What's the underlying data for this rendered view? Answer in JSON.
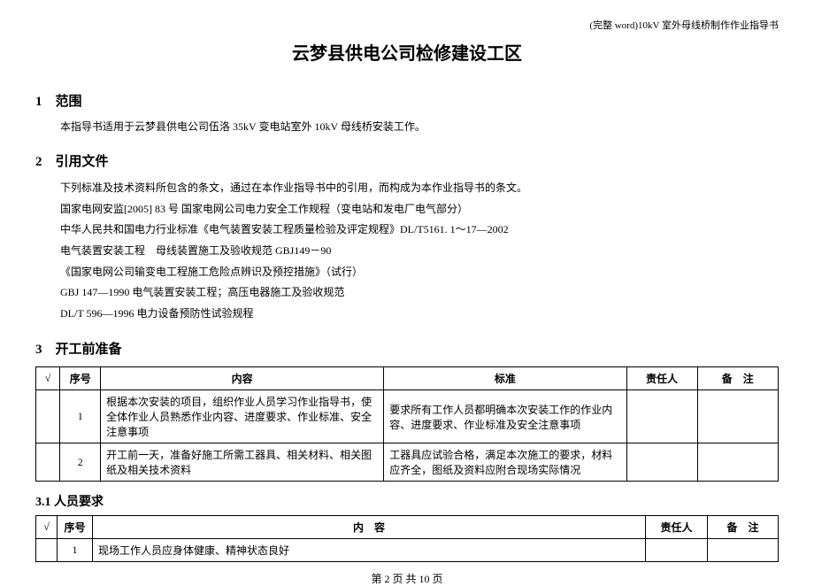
{
  "header": {
    "right_text": "(完整 word)10kV 室外母线桥制作作业指导书"
  },
  "title": "云梦县供电公司检修建设工区",
  "sections": {
    "s1": {
      "heading": "1　范围",
      "body": "本指导书适用于云梦县供电公司伍洛 35kV 变电站室外 10kV 母线桥安装工作。"
    },
    "s2": {
      "heading": "2　引用文件",
      "intro": "下列标准及技术资料所包含的条文，通过在本作业指导书中的引用，而构成为本作业指导书的条文。",
      "refs": [
        "国家电网安监[2005] 83 号 国家电网公司电力安全工作规程（变电站和发电厂电气部分）",
        "中华人民共和国电力行业标准《电气装置安装工程质量检验及评定规程》DL/T5161. 1～17—2002",
        "电气装置安装工程　母线装置施工及验收规范 GBJ149－90",
        "《国家电网公司输变电工程施工危险点辨识及预控措施》（试行）",
        "GBJ 147—1990 电气装置安装工程；高压电器施工及验收规范",
        "DL/T 596—1996 电力设备预防性试验规程"
      ]
    },
    "s3": {
      "heading": "3　开工前准备"
    },
    "s31": {
      "heading": "3.1 人员要求"
    }
  },
  "table1": {
    "headers": {
      "check": "√",
      "seq": "序号",
      "content": "内容",
      "standard": "标准",
      "person": "责任人",
      "note": "备　注"
    },
    "rows": [
      {
        "seq": "1",
        "content": "根据本次安装的项目，组织作业人员学习作业指导书，使全体作业人员熟悉作业内容、进度要求、作业标准、安全注意事项",
        "standard": "要求所有工作人员都明确本次安装工作的作业内容、进度要求、作业标准及安全注意事项",
        "person": "",
        "note": ""
      },
      {
        "seq": "2",
        "content": "开工前一天，准备好施工所需工器具、相关材料、相关图纸及相关技术资料",
        "standard": "工器具应试验合格，满足本次施工的要求，材料应齐全，图纸及资料应附合现场实际情况",
        "person": "",
        "note": ""
      }
    ]
  },
  "table2": {
    "headers": {
      "check": "√",
      "seq": "序号",
      "content": "内　容",
      "person": "责任人",
      "note": "备　注"
    },
    "rows": [
      {
        "seq": "1",
        "content": "现场工作人员应身体健康、精神状态良好",
        "person": "",
        "note": ""
      }
    ]
  },
  "footer": "第 2 页  共 10 页"
}
